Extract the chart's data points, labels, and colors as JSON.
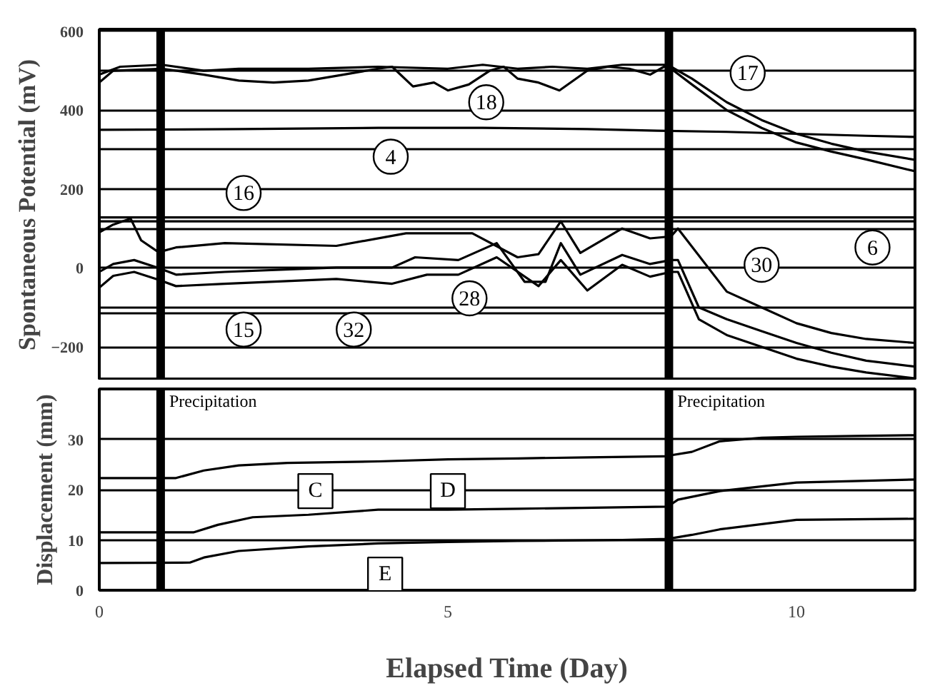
{
  "chart_data": [
    {
      "type": "line",
      "ylabel": "Spontaneous Potential (mV)",
      "xlim": [
        0,
        11.7
      ],
      "ylim": [
        -285,
        605
      ],
      "yticks": [
        600,
        {
          "value": 500,
          "label": null
        },
        400,
        {
          "value": 300,
          "label": null
        },
        200,
        {
          "value": 100,
          "label": null
        },
        0,
        {
          "value": -100,
          "label": null
        },
        -200
      ],
      "grid": "y",
      "tick_labels": "y",
      "series": [
        {
          "color": "#000000",
          "x": [
            0,
            0.3,
            0.9,
            1.5,
            2,
            3,
            4,
            5,
            5.5,
            6,
            6.5,
            7,
            7.5,
            8.1,
            8.2,
            8.5,
            9,
            9.5,
            10,
            10.5,
            11,
            11.7
          ],
          "values": [
            490,
            510,
            515,
            500,
            505,
            505,
            510,
            505,
            515,
            505,
            510,
            505,
            515,
            515,
            510,
            480,
            420,
            375,
            340,
            315,
            295,
            274
          ]
        },
        {
          "color": "#000000",
          "x": [
            0,
            0.2,
            0.9,
            1.5,
            2,
            2.5,
            3,
            3.5,
            4,
            4.2,
            4.5,
            4.8,
            5,
            5.3,
            5.6,
            5.8,
            6,
            6.3,
            6.6,
            7,
            7.3,
            7.6,
            7.9,
            8.1,
            8.2,
            8.5,
            9,
            9.5,
            10,
            10.5,
            11,
            11.7
          ],
          "values": [
            470,
            500,
            505,
            490,
            475,
            470,
            475,
            490,
            505,
            510,
            460,
            470,
            450,
            465,
            500,
            510,
            480,
            470,
            450,
            500,
            510,
            505,
            490,
            510,
            505,
            465,
            400,
            355,
            318,
            295,
            275,
            245
          ]
        },
        {
          "color": "#000000",
          "x": [
            0,
            2,
            4,
            5.5,
            7,
            8,
            9,
            10,
            11,
            11.7
          ],
          "values": [
            350,
            352,
            355,
            355,
            352,
            348,
            345,
            340,
            335,
            332
          ]
        },
        {
          "color": "#000000",
          "x": [
            0,
            11.7
          ],
          "values": [
            128,
            128
          ]
        },
        {
          "color": "#000000",
          "x": [
            0,
            11.7
          ],
          "values": [
            118,
            118
          ]
        },
        {
          "color": "#000000",
          "x": [
            0,
            0.2,
            0.45,
            0.6,
            0.85,
            1.1,
            1.8,
            3.4,
            4.4,
            5.35,
            6.0,
            6.3,
            6.62,
            6.9,
            7.5,
            7.9,
            8.2,
            8.3,
            9,
            9.5,
            10,
            10.5,
            11,
            11.7
          ],
          "values": [
            90,
            110,
            125,
            70,
            40,
            52,
            63,
            56,
            88,
            88,
            27,
            35,
            118,
            38,
            100,
            75,
            80,
            100,
            -60,
            -100,
            -140,
            -165,
            -180,
            -190
          ]
        },
        {
          "color": "#000000",
          "x": [
            0,
            0.2,
            0.5,
            0.85,
            1.1,
            1.8,
            3.4,
            4.2,
            4.53,
            5.15,
            5.7,
            6.1,
            6.4,
            6.62,
            6.9,
            7.5,
            7.9,
            8.2,
            8.3,
            8.6,
            9,
            9.5,
            10,
            10.5,
            11,
            11.7
          ],
          "values": [
            -10,
            10,
            20,
            0,
            -17,
            -10,
            1,
            1,
            27,
            20,
            63,
            -35,
            -35,
            63,
            -17,
            33,
            10,
            20,
            20,
            -100,
            -130,
            -160,
            -190,
            -215,
            -235,
            -250
          ]
        },
        {
          "color": "#000000",
          "x": [
            0,
            0.2,
            0.5,
            0.85,
            1.1,
            1.8,
            3.4,
            4.2,
            4.7,
            5.15,
            5.7,
            6.3,
            6.62,
            7.0,
            7.5,
            7.9,
            8.2,
            8.3,
            8.6,
            9,
            9.5,
            10,
            10.5,
            11,
            11.7
          ],
          "values": [
            -50,
            -20,
            -10,
            -30,
            -46,
            -40,
            -28,
            -40,
            -17,
            -17,
            27,
            -46,
            20,
            -57,
            8,
            -22,
            -10,
            -10,
            -130,
            -170,
            -200,
            -230,
            -250,
            -265,
            -280
          ]
        },
        {
          "color": "#000000",
          "x": [
            0,
            8.2
          ],
          "values": [
            -115,
            -115
          ]
        }
      ],
      "ref_lines": [
        {
          "axis": "x",
          "value": 0.88,
          "color": "#000000"
        },
        {
          "axis": "x",
          "value": 8.17,
          "color": "#000000"
        }
      ],
      "annotations": [
        {
          "text": "18",
          "x": 5.55,
          "y": 420
        },
        {
          "text": "4",
          "x": 4.18,
          "y": 282
        },
        {
          "text": "16",
          "x": 2.07,
          "y": 190
        },
        {
          "text": "17",
          "x": 9.3,
          "y": 494
        },
        {
          "text": "6",
          "x": 11.09,
          "y": 52
        },
        {
          "text": "15",
          "x": 2.07,
          "y": -156
        },
        {
          "text": "32",
          "x": 3.65,
          "y": -156
        },
        {
          "text": "28",
          "x": 5.31,
          "y": -77
        },
        {
          "text": "30",
          "x": 9.5,
          "y": 8
        }
      ]
    },
    {
      "type": "line",
      "xlabel": "Elapsed Time (Day)",
      "ylabel": "Displacement (mm)",
      "xlim": [
        0,
        11.7
      ],
      "ylim": [
        0,
        40
      ],
      "xticks": [
        0,
        5,
        10
      ],
      "yticks": [
        0,
        10,
        20,
        30
      ],
      "grid": "y",
      "series": [
        {
          "color": "#000000",
          "x": [
            0,
            1.1,
            1.5,
            2,
            2.7,
            4,
            5,
            6,
            7,
            8.1,
            8.5,
            8.9,
            9.5,
            10,
            11,
            11.7
          ],
          "values": [
            22.3,
            22.3,
            23.8,
            24.8,
            25.3,
            25.6,
            26,
            26.2,
            26.4,
            26.6,
            27.5,
            29.6,
            30.3,
            30.5,
            30.7,
            30.8
          ]
        },
        {
          "color": "#000000",
          "x": [
            0,
            1.35,
            1.7,
            2.2,
            3,
            4,
            5,
            6,
            8.15,
            8.3,
            8.9,
            10,
            11.7
          ],
          "values": [
            11.5,
            11.5,
            13,
            14.5,
            15,
            16,
            16,
            16.2,
            16.6,
            18,
            19.7,
            21.4,
            22
          ]
        },
        {
          "color": "#000000",
          "x": [
            0,
            1.3,
            1.5,
            2,
            3,
            4,
            5,
            6,
            7.5,
            8.15,
            8.5,
            8.9,
            10,
            11.7
          ],
          "values": [
            5.4,
            5.5,
            6.5,
            7.8,
            8.7,
            9.3,
            9.6,
            9.8,
            10,
            10.2,
            11,
            12.1,
            14,
            14.2
          ]
        }
      ],
      "ref_lines": [
        {
          "axis": "x",
          "value": 0.88,
          "color": "#000000",
          "label": "Precipitation"
        },
        {
          "axis": "x",
          "value": 8.17,
          "color": "#000000",
          "label": "Precipitation"
        }
      ],
      "annotations": [
        {
          "text": "C",
          "x": 3.1,
          "y": 19.7
        },
        {
          "text": "D",
          "x": 5.0,
          "y": 19.7
        },
        {
          "text": "E",
          "x": 4.1,
          "y": 3.1
        }
      ]
    }
  ]
}
